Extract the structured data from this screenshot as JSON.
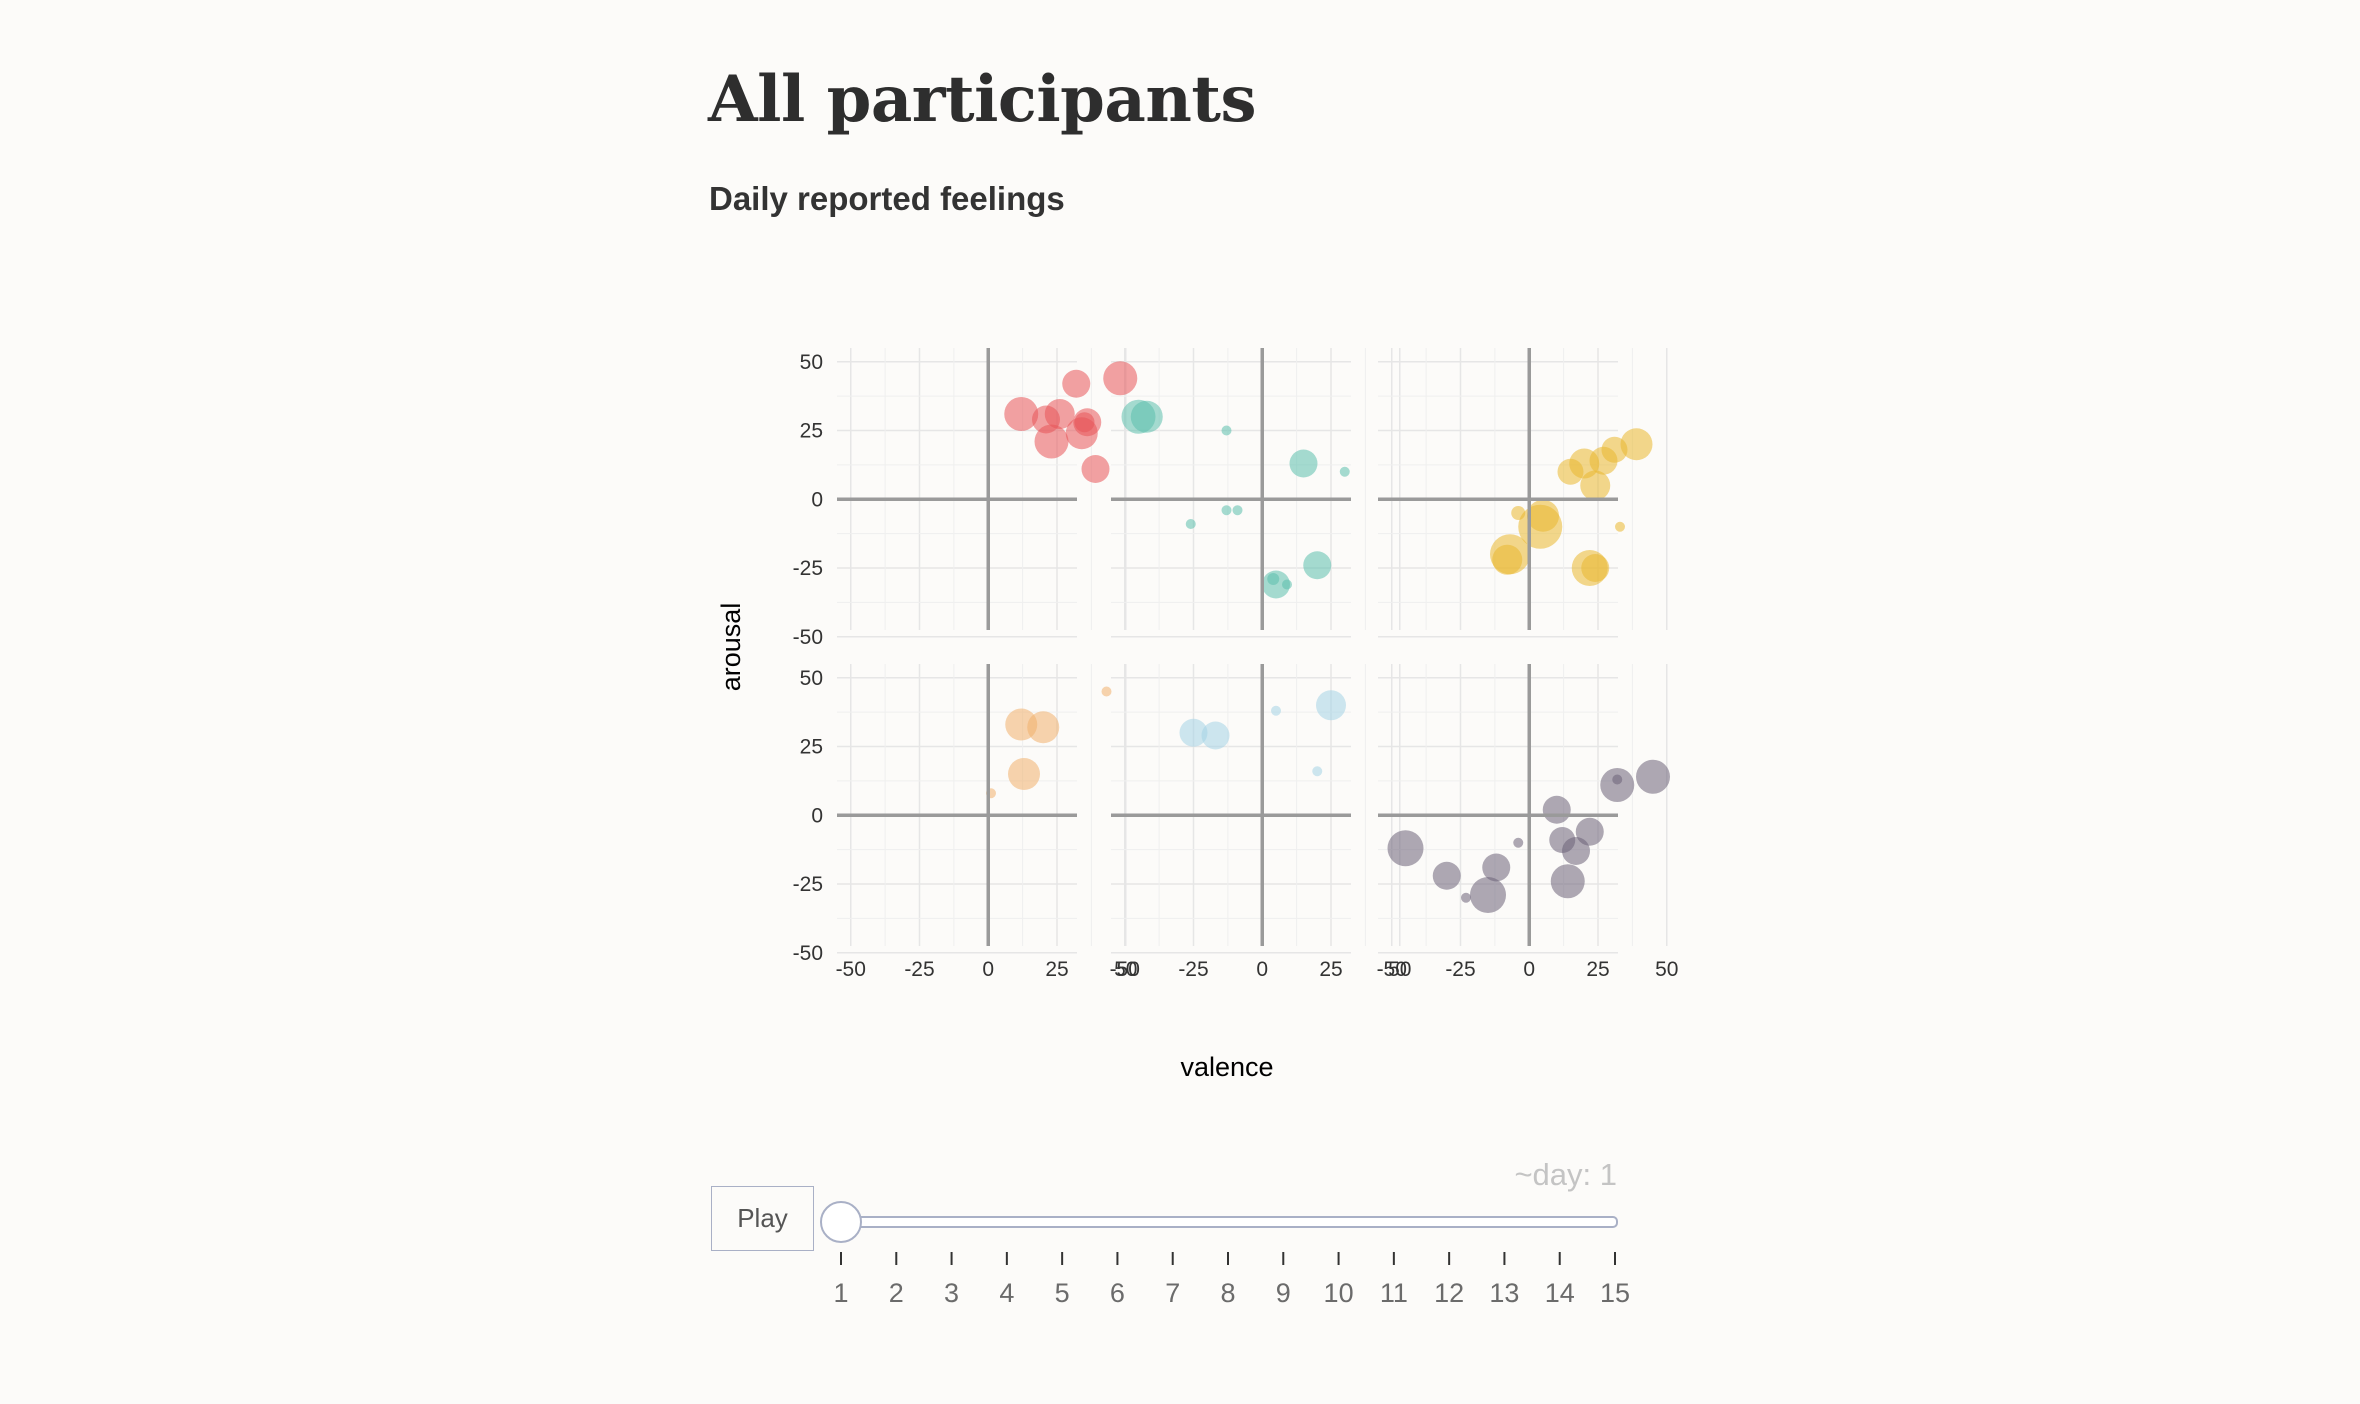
{
  "page": {
    "title": "All participants",
    "subtitle": "Daily reported feelings"
  },
  "chart_data": {
    "type": "scatter",
    "layout": "small-multiples 2x3",
    "xlabel": "valence",
    "ylabel": "arousal",
    "xlim": [
      -55,
      55
    ],
    "ylim": [
      -55,
      55
    ],
    "xticks": [
      -50,
      -25,
      0,
      25,
      50
    ],
    "yticks": [
      -50,
      -25,
      0,
      25,
      50
    ],
    "grid": true,
    "size_encoding": "bubble size",
    "panels": [
      {
        "color": "#e8555a",
        "points": [
          {
            "x": 12,
            "y": 31,
            "s": 17
          },
          {
            "x": 21,
            "y": 29,
            "s": 14
          },
          {
            "x": 26,
            "y": 31,
            "s": 15
          },
          {
            "x": 23,
            "y": 21,
            "s": 17
          },
          {
            "x": 32,
            "y": 42,
            "s": 14
          },
          {
            "x": 34,
            "y": 24,
            "s": 16
          },
          {
            "x": 36,
            "y": 28,
            "s": 14
          },
          {
            "x": 35,
            "y": 28,
            "s": 10
          },
          {
            "x": 39,
            "y": 11,
            "s": 14
          },
          {
            "x": 48,
            "y": 44,
            "s": 17
          }
        ]
      },
      {
        "color": "#5bbfad",
        "points": [
          {
            "x": -45,
            "y": 30,
            "s": 17
          },
          {
            "x": -42,
            "y": 30,
            "s": 16
          },
          {
            "x": -13,
            "y": 25,
            "s": 5
          },
          {
            "x": -26,
            "y": -9,
            "s": 5
          },
          {
            "x": -13,
            "y": -4,
            "s": 5
          },
          {
            "x": -9,
            "y": -4,
            "s": 5
          },
          {
            "x": 15,
            "y": 13,
            "s": 14
          },
          {
            "x": 30,
            "y": 10,
            "s": 5
          },
          {
            "x": 20,
            "y": -24,
            "s": 14
          },
          {
            "x": 5,
            "y": -31,
            "s": 14
          },
          {
            "x": 4,
            "y": -29,
            "s": 6
          },
          {
            "x": 9,
            "y": -31,
            "s": 5
          }
        ]
      },
      {
        "color": "#eab830",
        "points": [
          {
            "x": -7,
            "y": -20,
            "s": 20
          },
          {
            "x": -8,
            "y": -22,
            "s": 15
          },
          {
            "x": 4,
            "y": -10,
            "s": 22
          },
          {
            "x": 5,
            "y": -6,
            "s": 16
          },
          {
            "x": -4,
            "y": -5,
            "s": 7
          },
          {
            "x": 22,
            "y": -25,
            "s": 18
          },
          {
            "x": 24,
            "y": -25,
            "s": 14
          },
          {
            "x": 33,
            "y": -10,
            "s": 5
          },
          {
            "x": 15,
            "y": 10,
            "s": 13
          },
          {
            "x": 20,
            "y": 13,
            "s": 15
          },
          {
            "x": 24,
            "y": 5,
            "s": 15
          },
          {
            "x": 27,
            "y": 14,
            "s": 14
          },
          {
            "x": 31,
            "y": 18,
            "s": 13
          },
          {
            "x": 39,
            "y": 20,
            "s": 16
          }
        ]
      },
      {
        "color": "#f0b06e",
        "points": [
          {
            "x": 12,
            "y": 33,
            "s": 16
          },
          {
            "x": 20,
            "y": 32,
            "s": 16
          },
          {
            "x": 13,
            "y": 15,
            "s": 16
          },
          {
            "x": 1,
            "y": 8,
            "s": 5
          },
          {
            "x": 43,
            "y": 45,
            "s": 5
          }
        ]
      },
      {
        "color": "#a4d4e6",
        "points": [
          {
            "x": -25,
            "y": 30,
            "s": 14
          },
          {
            "x": -17,
            "y": 29,
            "s": 14
          },
          {
            "x": 25,
            "y": 40,
            "s": 15
          },
          {
            "x": 5,
            "y": 38,
            "s": 5
          },
          {
            "x": 20,
            "y": 16,
            "s": 5
          }
        ]
      },
      {
        "color": "#6b6278",
        "points": [
          {
            "x": -45,
            "y": -12,
            "s": 18
          },
          {
            "x": -30,
            "y": -22,
            "s": 14
          },
          {
            "x": -12,
            "y": -19,
            "s": 14
          },
          {
            "x": -15,
            "y": -29,
            "s": 18
          },
          {
            "x": -23,
            "y": -30,
            "s": 5
          },
          {
            "x": -4,
            "y": -10,
            "s": 5
          },
          {
            "x": 10,
            "y": 2,
            "s": 14
          },
          {
            "x": 12,
            "y": -9,
            "s": 13
          },
          {
            "x": 17,
            "y": -13,
            "s": 14
          },
          {
            "x": 22,
            "y": -6,
            "s": 14
          },
          {
            "x": 14,
            "y": -24,
            "s": 17
          },
          {
            "x": 32,
            "y": 11,
            "s": 17
          },
          {
            "x": 45,
            "y": 14,
            "s": 17
          },
          {
            "x": 32,
            "y": 13,
            "s": 5
          }
        ]
      }
    ]
  },
  "controls": {
    "play_label": "Play",
    "day_prefix": "~day: ",
    "day_value": "1",
    "slider_min": 1,
    "slider_max": 15,
    "slider_value": 1,
    "slider_ticks": [
      "1",
      "2",
      "3",
      "4",
      "5",
      "6",
      "7",
      "8",
      "9",
      "10",
      "11",
      "12",
      "13",
      "14",
      "15"
    ]
  },
  "colors": {
    "background": "#fcfbf9",
    "gridline": "#e6e6e6",
    "zero_axis": "#9a9a9a",
    "slider_track": "#a9b0c6"
  }
}
